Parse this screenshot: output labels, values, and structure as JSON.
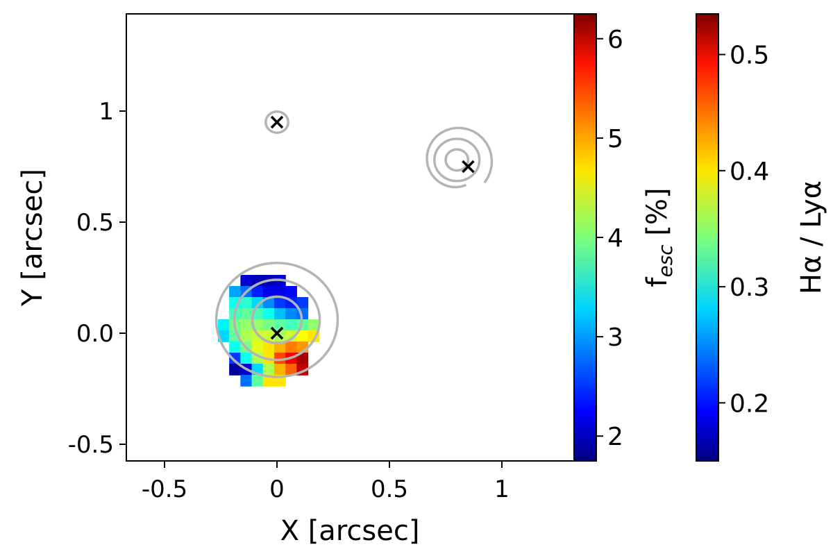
{
  "chart_data": {
    "type": "heatmap",
    "xlabel": "X [arcsec]",
    "ylabel": "Y [arcsec]",
    "xlim": [
      -0.5,
      1.0
    ],
    "ylim": [
      -0.5,
      1.0
    ],
    "xticks": [
      {
        "value": -0.5,
        "label": "-0.5"
      },
      {
        "value": 0.0,
        "label": "0"
      },
      {
        "value": 0.5,
        "label": "0.5"
      },
      {
        "value": 1.0,
        "label": "1"
      }
    ],
    "yticks": [
      {
        "value": -0.5,
        "label": "-0.5"
      },
      {
        "value": 0.0,
        "label": "0.0"
      },
      {
        "value": 0.5,
        "label": "0.5"
      },
      {
        "value": 1.0,
        "label": "1"
      }
    ],
    "markers": [
      {
        "x": 0.0,
        "y": 0.95
      },
      {
        "x": 0.85,
        "y": 0.75
      },
      {
        "x": 0.0,
        "y": 0.0
      }
    ],
    "contours": [
      {
        "center": [
          0.0,
          0.95
        ],
        "radii": [
          0.05
        ],
        "color": "#b4b4b4"
      },
      {
        "center": [
          0.8,
          0.78
        ],
        "radii": [
          0.05,
          0.1,
          0.16
        ],
        "spiral_end": [
          0.87,
          0.65
        ],
        "color": "#b4b4b4"
      },
      {
        "center": [
          0.0,
          0.06
        ],
        "radii": [
          0.11,
          0.19,
          0.27
        ],
        "color": "#b4b4b4"
      }
    ],
    "pixel_map": {
      "origin": [
        -0.2625,
        0.2625
      ],
      "pixel_size": 0.05,
      "rows": [
        ".......",
        "....",
        "......."
      ],
      "values": [
        [
          null,
          null,
          0.18,
          0.17,
          0.17,
          0.18,
          null,
          null,
          null,
          null
        ],
        [
          null,
          0.26,
          0.24,
          0.21,
          0.19,
          0.19,
          0.2,
          null,
          null,
          null
        ],
        [
          null,
          0.3,
          0.31,
          0.28,
          0.25,
          0.22,
          0.21,
          0.22,
          null,
          null
        ],
        [
          null,
          0.32,
          0.33,
          0.32,
          0.3,
          0.27,
          0.25,
          0.24,
          null,
          null
        ],
        [
          0.29,
          0.34,
          0.35,
          0.35,
          0.34,
          0.33,
          0.32,
          0.33,
          0.35,
          null
        ],
        [
          0.28,
          0.33,
          0.36,
          0.37,
          0.37,
          0.36,
          0.37,
          0.39,
          0.4,
          null
        ],
        [
          null,
          0.3,
          0.34,
          0.38,
          0.4,
          0.42,
          0.44,
          0.43,
          null,
          null
        ],
        [
          null,
          0.22,
          0.3,
          0.36,
          0.4,
          0.46,
          0.49,
          0.52,
          null,
          null
        ],
        [
          null,
          0.16,
          0.18,
          0.28,
          0.36,
          0.42,
          0.45,
          0.51,
          null,
          null
        ],
        [
          null,
          null,
          0.24,
          0.33,
          0.4,
          0.4,
          null,
          null,
          null,
          null
        ]
      ]
    },
    "colorbars": [
      {
        "label_main": "f",
        "label_sub": "esc",
        "label_suffix": " [%]",
        "range": [
          1.75,
          6.25
        ],
        "ticks": [
          2,
          3,
          4,
          5,
          6
        ],
        "colormap": "jet"
      },
      {
        "label": "Hα / Lyα",
        "range": [
          0.15,
          0.535
        ],
        "ticks": [
          0.2,
          0.3,
          0.4,
          0.5
        ],
        "colormap": "jet"
      }
    ]
  }
}
